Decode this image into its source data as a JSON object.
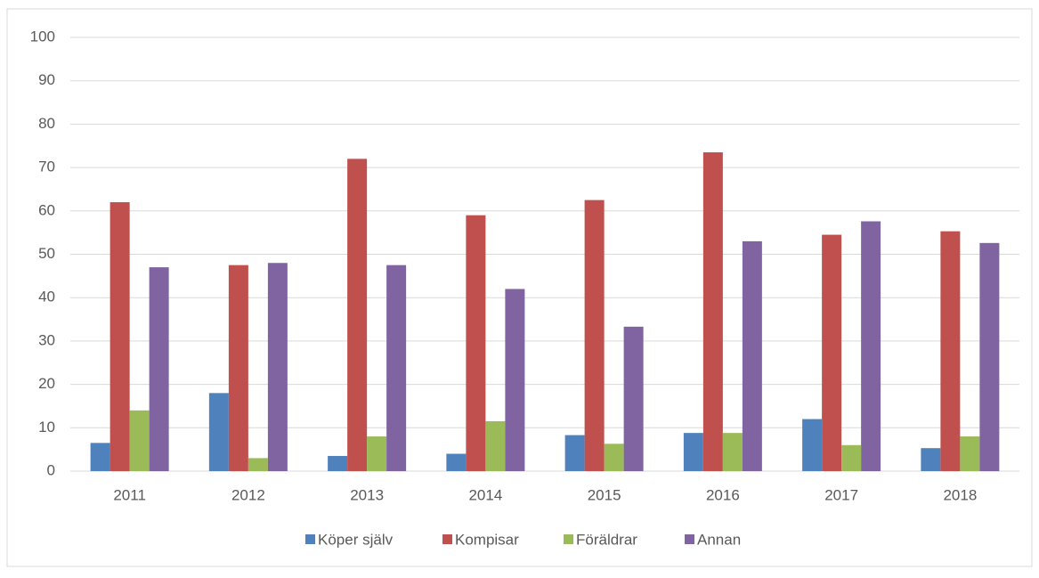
{
  "chart_data": {
    "type": "bar",
    "categories": [
      "2011",
      "2012",
      "2013",
      "2014",
      "2015",
      "2016",
      "2017",
      "2018"
    ],
    "series": [
      {
        "name": "Köper själv",
        "color": "#4f81bd",
        "values": [
          6.5,
          18,
          3.5,
          4,
          8.3,
          8.8,
          12,
          5.3
        ]
      },
      {
        "name": "Kompisar",
        "color": "#c0504d",
        "values": [
          62,
          47.5,
          72,
          59,
          62.5,
          73.5,
          54.5,
          55.3
        ]
      },
      {
        "name": "Föräldrar",
        "color": "#9bbb59",
        "values": [
          14,
          3,
          8,
          11.5,
          6.3,
          8.8,
          6,
          8
        ]
      },
      {
        "name": "Annan",
        "color": "#8064a2",
        "values": [
          47,
          48,
          47.5,
          42,
          33.3,
          53,
          57.6,
          52.6
        ]
      }
    ],
    "ylim": [
      0,
      100
    ],
    "yticks": [
      0,
      10,
      20,
      30,
      40,
      50,
      60,
      70,
      80,
      90,
      100
    ],
    "grid": true,
    "legend": "bottom"
  }
}
